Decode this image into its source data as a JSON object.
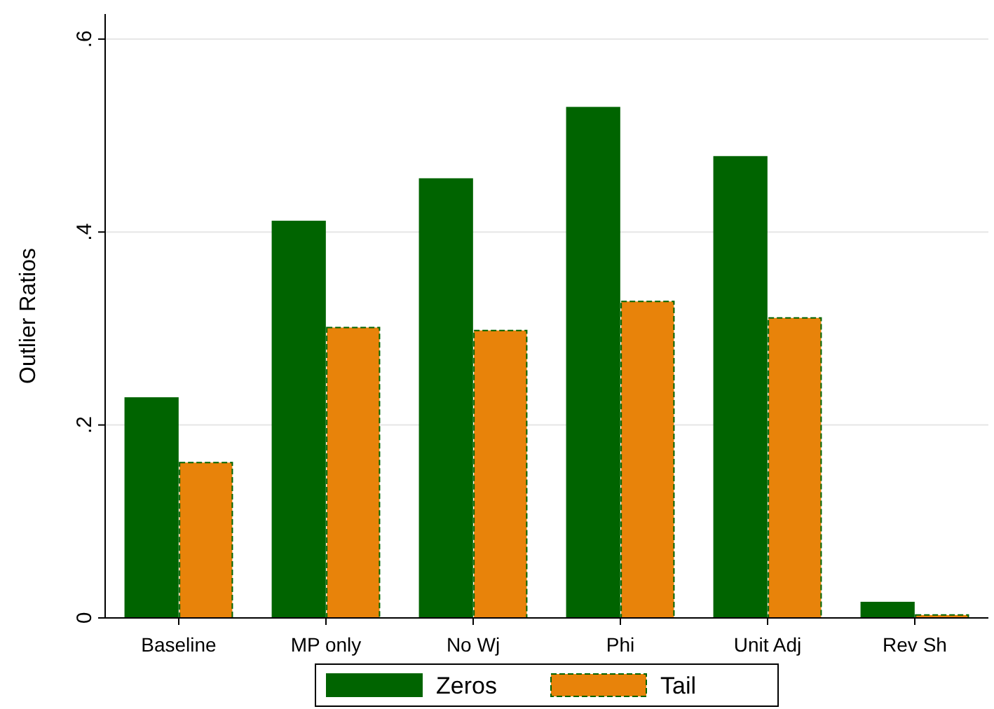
{
  "chart_data": {
    "type": "bar",
    "ylabel": "Outlier Ratios",
    "categories": [
      "Baseline",
      "MP only",
      "No Wj",
      "Phi",
      "Unit Adj",
      "Rev Sh"
    ],
    "series": [
      {
        "name": "Zeros",
        "color": "#006400",
        "line_style": "solid",
        "values": [
          0.228,
          0.411,
          0.455,
          0.529,
          0.478,
          0.016
        ]
      },
      {
        "name": "Tail",
        "color": "#e8830a",
        "line_style": "dashed",
        "values": [
          0.161,
          0.301,
          0.298,
          0.328,
          0.311,
          0.003
        ]
      }
    ],
    "ylim": [
      0,
      0.626
    ],
    "yticks": [
      {
        "value": 0,
        "label": "0"
      },
      {
        "value": 0.2,
        "label": ".2"
      },
      {
        "value": 0.4,
        "label": ".4"
      },
      {
        "value": 0.6,
        "label": ".6"
      }
    ],
    "grid": "y",
    "legend": "bottom"
  }
}
